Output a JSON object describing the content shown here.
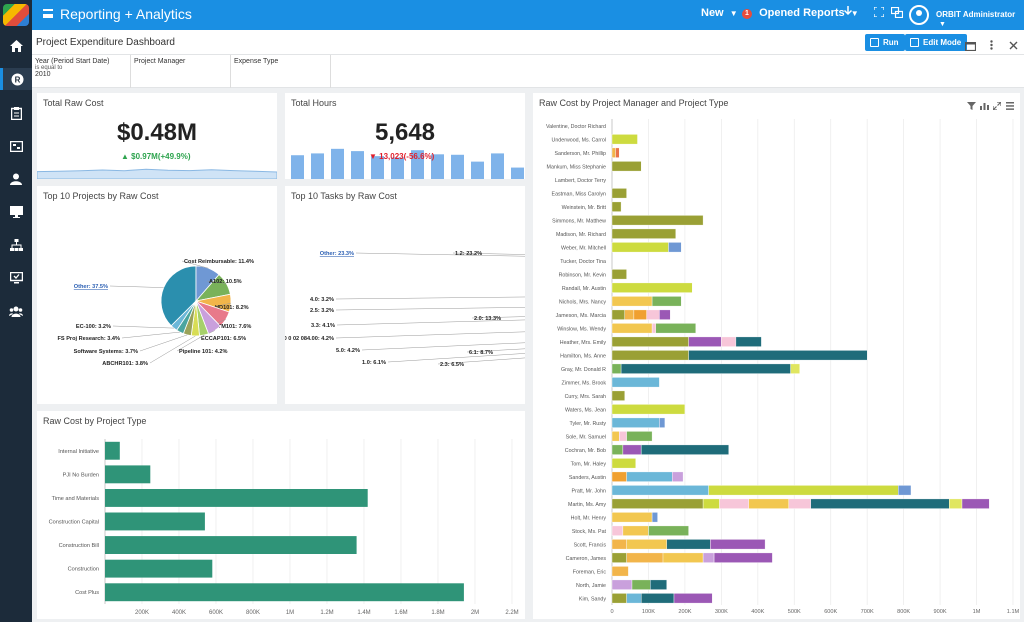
{
  "app": {
    "title": "Reporting + Analytics"
  },
  "topbar": {
    "new_label": "New",
    "opened_reports_label": "Opened Reports",
    "opened_reports_count": "1",
    "user_name": "ORBIT Administrator"
  },
  "header": {
    "page_title": "Project Expenditure Dashboard",
    "run_label": "Run",
    "edit_mode_label": "Edit Mode"
  },
  "filters": [
    {
      "label": "Year (Period Start Date)",
      "operator": "is equal to",
      "value": "2010"
    },
    {
      "label": "Project Manager",
      "operator": "",
      "value": ""
    },
    {
      "label": "Expense Type",
      "operator": "",
      "value": ""
    }
  ],
  "total_raw_cost": {
    "title": "Total Raw Cost",
    "value": "$0.48M",
    "delta": "$0.97M(+49.9%)",
    "delta_color": "#2ea44f"
  },
  "total_hours": {
    "title": "Total Hours",
    "value": "5,648",
    "delta": "13,023(-56.6%)",
    "delta_color": "#e01e2b"
  },
  "chart_data": [
    {
      "id": "raw_cost_sparkline",
      "type": "area",
      "values": [
        42,
        44,
        47,
        51,
        47,
        55,
        50,
        48,
        53,
        48,
        44,
        40
      ]
    },
    {
      "id": "hours_bars",
      "type": "bar",
      "values": [
        52,
        56,
        66,
        61,
        50,
        47,
        63,
        54,
        53,
        38,
        56,
        25
      ]
    },
    {
      "id": "top_projects",
      "type": "pie",
      "title": "Top 10 Projects by Raw Cost",
      "slices": [
        {
          "label": "Other",
          "value": 37.5,
          "color": "#2b8fae",
          "text": "Other: 37.5%"
        },
        {
          "label": "Cost Reimbursable",
          "value": 11.4,
          "color": "#6f98d4",
          "text": "Cost Reimbursable: 11.4%"
        },
        {
          "label": "A102",
          "value": 10.5,
          "color": "#79b25a",
          "text": "A102: 10.5%"
        },
        {
          "label": "HD101",
          "value": 8.2,
          "color": "#f2b54a",
          "text": "HD101: 8.2%"
        },
        {
          "label": "ECTM101",
          "value": 7.6,
          "color": "#e87a8a",
          "text": "ECTM101: 7.6%"
        },
        {
          "label": "ECCAP101",
          "value": 6.5,
          "color": "#c9a0dc",
          "text": "ECCAP101: 6.5%"
        },
        {
          "label": "Pipeline 101",
          "value": 4.2,
          "color": "#a6d06a",
          "text": "Pipeline 101: 4.2%"
        },
        {
          "label": "ABCHR101",
          "value": 3.8,
          "color": "#d8dd55",
          "text": "ABCHR101: 3.8%"
        },
        {
          "label": "Software Systems",
          "value": 3.7,
          "color": "#9aa35a",
          "text": "Software Systems: 3.7%"
        },
        {
          "label": "FS Proj Research",
          "value": 3.4,
          "color": "#4aa5a0",
          "text": "FS Proj Research: 3.4%"
        },
        {
          "label": "EC-100",
          "value": 3.2,
          "color": "#6bb7d8",
          "text": "EC-100: 3.2%"
        }
      ]
    },
    {
      "id": "top_tasks",
      "type": "pie",
      "title": "Top 10 Tasks by Raw Cost",
      "slices": [
        {
          "label": "Other",
          "value": 23.3,
          "color": "#2b8fae",
          "text": "Other: 23.3%"
        },
        {
          "label": "1.2",
          "value": 23.2,
          "color": "#6f98d4",
          "text": "1.2: 23.2%"
        },
        {
          "label": "2.0",
          "value": 13.3,
          "color": "#79b25a",
          "text": "2.0: 13.3%"
        },
        {
          "label": "6.1",
          "value": 8.7,
          "color": "#f2b54a",
          "text": "6.1: 8.7%"
        },
        {
          "label": "2.3",
          "value": 6.5,
          "color": "#f0a030",
          "text": "2.3: 6.5%"
        },
        {
          "label": "1.0",
          "value": 6.1,
          "color": "#c9a0dc",
          "text": "1.0: 6.1%"
        },
        {
          "label": "5.0",
          "value": 4.2,
          "color": "#9b58b5",
          "text": "5.0: 4.2%"
        },
        {
          "label": "0 0 02 084.00",
          "value": 4.2,
          "color": "#a6d06a",
          "text": "0 0 02 084.00: 4.2%"
        },
        {
          "label": "3.3",
          "value": 4.1,
          "color": "#d8dd55",
          "text": "3.3: 4.1%"
        },
        {
          "label": "2.5",
          "value": 3.2,
          "color": "#9aa35a",
          "text": "2.5: 3.2%"
        },
        {
          "label": "4.0",
          "value": 3.2,
          "color": "#6bb7d8",
          "text": "4.0: 3.2%"
        }
      ]
    },
    {
      "id": "raw_cost_by_project_type",
      "type": "bar",
      "title": "Raw Cost by Project Type",
      "orientation": "horizontal",
      "xlim": [
        0,
        2200000
      ],
      "ticks": [
        200000,
        400000,
        600000,
        800000,
        1000000,
        1200000,
        1400000,
        1600000,
        1800000,
        2000000,
        2200000
      ],
      "tick_labels": [
        "200K",
        "400K",
        "600K",
        "800K",
        "1M",
        "1.2M",
        "1.4M",
        "1.6M",
        "1.8M",
        "2M",
        "2.2M"
      ],
      "categories": [
        "Internal Initiative",
        "PJI No Burden",
        "Time and Materials",
        "Construction Capital",
        "Construction Bill",
        "Construction",
        "Cost Plus"
      ],
      "values": [
        80000,
        245000,
        1420000,
        540000,
        1360000,
        580000,
        1940000
      ],
      "color": "#2f9478"
    },
    {
      "id": "raw_cost_by_pm_and_type",
      "type": "bar",
      "title": "Raw Cost by Project Manager and Project Type",
      "orientation": "horizontal",
      "stacked": true,
      "xlim": [
        0,
        1100000
      ],
      "ticks": [
        0,
        100000,
        200000,
        300000,
        400000,
        500000,
        600000,
        700000,
        800000,
        900000,
        1000000,
        1100000
      ],
      "tick_labels": [
        "0",
        "100K",
        "200K",
        "300K",
        "400K",
        "500K",
        "600K",
        "700K",
        "800K",
        "900K",
        "1M",
        "1.1M"
      ],
      "categories": [
        "Valentine, Doctor Richard",
        "Underwood, Ms. Carrol",
        "Sanderson, Mr. Phillip",
        "Mankum, Miss Stephanie",
        "Lambert, Doctor Terry",
        "Eastman, Miss Carolyn",
        "Weinstein, Mr. Britt",
        "Simmons, Mr. Matthew",
        "Madison, Mr. Richard",
        "Weber, Mr. Mitchell",
        "Tucker, Doctor Tina",
        "Robinson, Mr. Kevin",
        "Randall, Mr. Austin",
        "Nichols, Mrs. Nancy",
        "Jameson, Ms. Marcia",
        "Winslow, Ms. Wendy",
        "Heather, Mrs. Emily",
        "Hamilton, Ms. Anne",
        "Gray, Mr. Donald R",
        "Zimmer, Ms. Brook",
        "Curry, Mrs. Sarah",
        "Waters, Ms. Jean",
        "Tyler, Mr. Rusty",
        "Sole, Mr. Samuel",
        "Cochran, Mr. Bob",
        "Tom, Mr. Haley",
        "Sanders, Austin",
        "Pratt, Mr. John",
        "Martin, Ms. Amy",
        "Holt, Mr. Henry",
        "Stock, Ms. Pat",
        "Scott, Francis",
        "Cameron, James",
        "Foreman, Eric",
        "North, Jamie",
        "Kim, Sandy"
      ],
      "stacks": [
        [],
        [
          [
            "#cddb3f",
            70000
          ]
        ],
        [
          [
            "#f2b54a",
            10000
          ],
          [
            "#e8734a",
            10000
          ]
        ],
        [
          [
            "#9aa035",
            80000
          ]
        ],
        [],
        [
          [
            "#9aa035",
            40000
          ]
        ],
        [
          [
            "#9aa035",
            25000
          ]
        ],
        [
          [
            "#9aa035",
            250000
          ]
        ],
        [
          [
            "#9aa035",
            175000
          ]
        ],
        [
          [
            "#cddb3f",
            155000
          ],
          [
            "#6f98d4",
            35000
          ]
        ],
        [],
        [
          [
            "#9aa035",
            40000
          ]
        ],
        [
          [
            "#cddb3f",
            220000
          ]
        ],
        [
          [
            "#f2c750",
            110000
          ],
          [
            "#79b25a",
            80000
          ]
        ],
        [
          [
            "#9aa035",
            35000
          ],
          [
            "#f2b54a",
            25000
          ],
          [
            "#f0a030",
            35000
          ],
          [
            "#f7c6d9",
            35000
          ],
          [
            "#9b58b5",
            30000
          ]
        ],
        [
          [
            "#f2c750",
            110000
          ],
          [
            "#f7c6d9",
            10000
          ],
          [
            "#79b25a",
            110000
          ]
        ],
        [
          [
            "#9aa035",
            210000
          ],
          [
            "#9b58b5",
            90000
          ],
          [
            "#f7c6d9",
            40000
          ],
          [
            "#1f6c7a",
            70000
          ]
        ],
        [
          [
            "#9aa035",
            210000
          ],
          [
            "#1f6c7a",
            490000
          ]
        ],
        [
          [
            "#79b25a",
            25000
          ],
          [
            "#1f6c7a",
            465000
          ],
          [
            "#e0e660",
            25000
          ]
        ],
        [
          [
            "#6bb7d8",
            130000
          ]
        ],
        [
          [
            "#9aa035",
            35000
          ]
        ],
        [
          [
            "#cddb3f",
            200000
          ]
        ],
        [
          [
            "#6bb7d8",
            130000
          ],
          [
            "#6f98d4",
            15000
          ]
        ],
        [
          [
            "#f2c750",
            20000
          ],
          [
            "#f7c6d9",
            20000
          ],
          [
            "#79b25a",
            70000
          ]
        ],
        [
          [
            "#79b25a",
            30000
          ],
          [
            "#9b58b5",
            50000
          ],
          [
            "#1f6c7a",
            240000
          ]
        ],
        [
          [
            "#cddb3f",
            65000
          ]
        ],
        [
          [
            "#f0a030",
            40000
          ],
          [
            "#6bb7d8",
            125000
          ],
          [
            "#c9a0dc",
            30000
          ]
        ],
        [
          [
            "#6bb7d8",
            265000
          ],
          [
            "#cddb3f",
            520000
          ],
          [
            "#6f98d4",
            35000
          ]
        ],
        [
          [
            "#9aa035",
            250000
          ],
          [
            "#cddb3f",
            45000
          ],
          [
            "#f7c6d9",
            80000
          ],
          [
            "#f2c750",
            110000
          ],
          [
            "#f7c6d9",
            60000
          ],
          [
            "#1f6c7a",
            380000
          ],
          [
            "#e0e660",
            35000
          ],
          [
            "#9b58b5",
            75000
          ]
        ],
        [
          [
            "#f2c750",
            110000
          ],
          [
            "#6f98d4",
            15000
          ]
        ],
        [
          [
            "#f7c6d9",
            30000
          ],
          [
            "#f2c750",
            70000
          ],
          [
            "#79b25a",
            110000
          ]
        ],
        [
          [
            "#f2b54a",
            40000
          ],
          [
            "#f2c750",
            110000
          ],
          [
            "#1f6c7a",
            120000
          ],
          [
            "#9b58b5",
            150000
          ]
        ],
        [
          [
            "#9aa035",
            40000
          ],
          [
            "#f2b54a",
            100000
          ],
          [
            "#f2c750",
            110000
          ],
          [
            "#c9a0dc",
            30000
          ],
          [
            "#9b58b5",
            160000
          ]
        ],
        [
          [
            "#f2b54a",
            45000
          ]
        ],
        [
          [
            "#c9a0dc",
            55000
          ],
          [
            "#79b25a",
            50000
          ],
          [
            "#1f6c7a",
            45000
          ]
        ],
        [
          [
            "#9aa035",
            40000
          ],
          [
            "#6bb7d8",
            40000
          ],
          [
            "#1f6c7a",
            90000
          ],
          [
            "#9b58b5",
            105000
          ]
        ]
      ]
    }
  ]
}
